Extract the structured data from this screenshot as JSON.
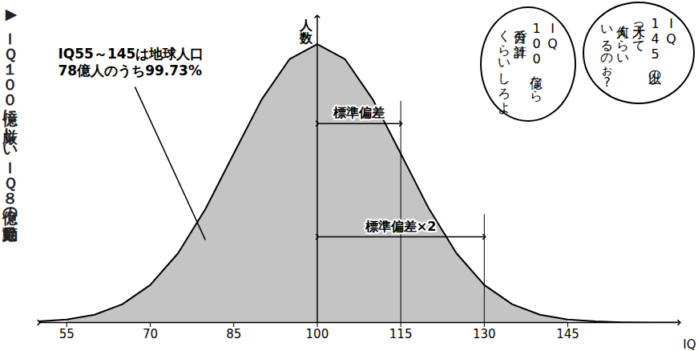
{
  "chart_data": {
    "type": "area",
    "x": [
      50,
      55,
      60,
      65,
      70,
      75,
      80,
      85,
      90,
      95,
      100,
      105,
      110,
      115,
      120,
      125,
      130,
      135,
      140,
      145,
      150,
      155,
      160,
      165
    ],
    "values": [
      0.4,
      1.1,
      2.8,
      6.6,
      13.5,
      24.9,
      41.1,
      60.7,
      80.1,
      94.6,
      100,
      94.6,
      80.1,
      60.7,
      41.1,
      24.9,
      13.5,
      6.6,
      2.8,
      1.1,
      0.4,
      0.1,
      0,
      0
    ],
    "xlim": [
      50,
      165
    ],
    "xticks": [
      55,
      70,
      85,
      100,
      115,
      130,
      145
    ],
    "ylim": [
      0,
      110
    ],
    "tick_labels": "x",
    "grid": false,
    "x_label": "IQ",
    "y_label": "人数",
    "color": "#c4c4c4",
    "shaded_range": [
      55,
      145
    ],
    "annotations": [
      {
        "text": "標準偏差",
        "from": 100,
        "to": 115
      },
      {
        "text": "標準偏差×2",
        "from": 100,
        "to": 130
      }
    ],
    "callout": {
      "lines": [
        "IQ55～145は地球人口",
        "78億人のうち99.73%"
      ]
    }
  },
  "caption": "▶ＩＱ１００億に厳しいＩＱ８億の節足動",
  "speech_bubbles": [
    {
      "lines": [
        "IQ",
        "145以上の",
        "天才って",
        "何人くらい",
        "いるのぉ?"
      ]
    },
    {
      "lines": [
        "IQ",
        "100億なら",
        "自分で計算",
        "くらいしろよ"
      ]
    }
  ]
}
